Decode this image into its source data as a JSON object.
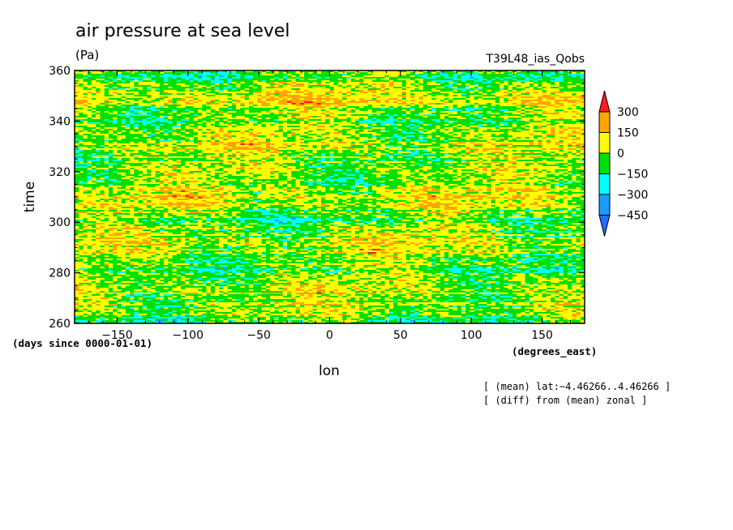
{
  "chart_data": {
    "type": "heatmap",
    "title": "air pressure at sea level",
    "units": "(Pa)",
    "dataset_label": "T39L48_ias_Qobs",
    "xlabel": "lon",
    "x_units": "(degrees_east)",
    "ylabel": "time",
    "y_units": "(days since 0000-01-01)",
    "xlim": [
      -180,
      180
    ],
    "ylim": [
      260,
      360
    ],
    "x_ticks": [
      -150,
      -100,
      -50,
      0,
      50,
      100,
      150
    ],
    "x_tick_labels": [
      "−150",
      "−100",
      "−50",
      "0",
      "50",
      "100",
      "150"
    ],
    "y_ticks": [
      260,
      280,
      300,
      320,
      340,
      360
    ],
    "y_tick_labels": [
      "260",
      "280",
      "300",
      "320",
      "340",
      "360"
    ],
    "colorbar": {
      "levels": [
        -450,
        -300,
        -150,
        0,
        150,
        300
      ],
      "level_labels": [
        "−450",
        "−300",
        "−150",
        "0",
        "150",
        "300"
      ],
      "colors": [
        "#1e6fff",
        "#1e9bff",
        "#00ffff",
        "#00e000",
        "#ffff00",
        "#ffa500",
        "#ff1e1e"
      ],
      "extend": "both"
    },
    "annotations": [
      "[ (mean) lat:−4.46266..4.46266 ]",
      "[ (diff) from (mean) zonal ]"
    ],
    "field_category_fractions": {
      "below_-450": 0.0,
      "-450_to_-300": 0.01,
      "-300_to_-150": 0.04,
      "-150_to_0": 0.46,
      "0_to_150": 0.44,
      "150_to_300": 0.05,
      "above_300": 0.005
    }
  }
}
